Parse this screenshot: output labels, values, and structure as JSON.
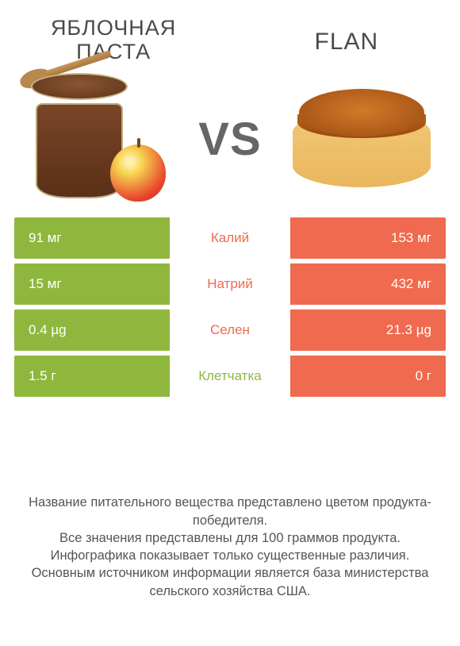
{
  "colors": {
    "left": "#8fb73e",
    "right": "#ef6a4e",
    "text": "#4a4a4a",
    "background": "#ffffff"
  },
  "titles": {
    "left": "ЯБЛОЧНАЯ ПАСТА",
    "right": "FLAN",
    "vs": "VS"
  },
  "rows": [
    {
      "nutrient": "Калий",
      "left": "91 мг",
      "right": "153 мг",
      "winner": "right"
    },
    {
      "nutrient": "Натрий",
      "left": "15 мг",
      "right": "432 мг",
      "winner": "right"
    },
    {
      "nutrient": "Селен",
      "left": "0.4 µg",
      "right": "21.3 µg",
      "winner": "right"
    },
    {
      "nutrient": "Клетчатка",
      "left": "1.5 г",
      "right": "0 г",
      "winner": "left"
    }
  ],
  "footer": {
    "l1": "Название питательного вещества представлено цветом продукта-победителя.",
    "l2": "Все значения представлены для 100 граммов продукта.",
    "l3": "Инфографика показывает только существенные различия.",
    "l4": "Основным источником информации является база министерства сельского хозяйства США."
  }
}
